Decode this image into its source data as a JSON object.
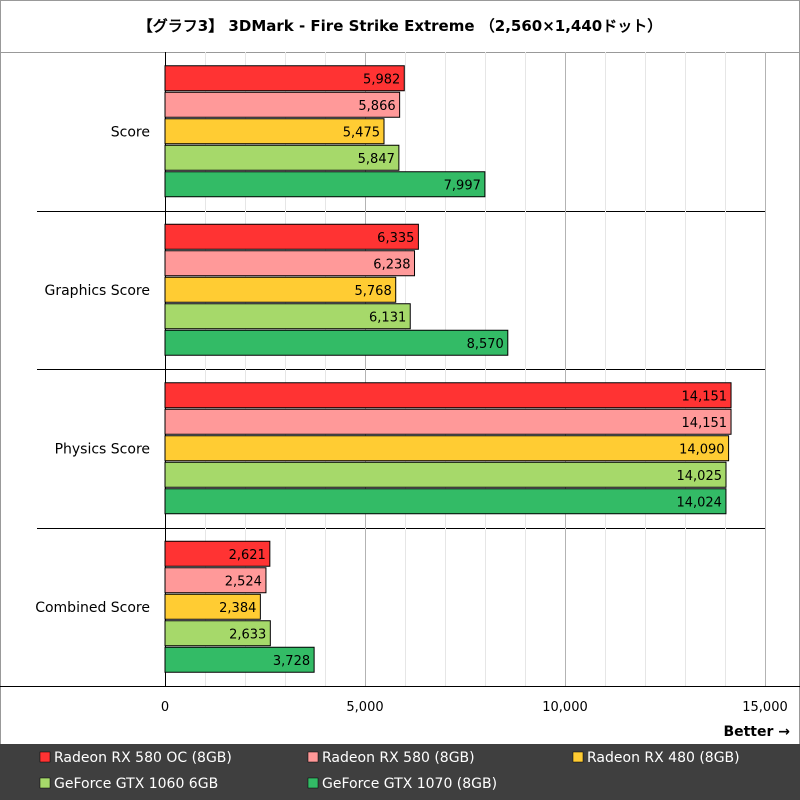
{
  "chart_data": {
    "type": "bar",
    "orientation": "horizontal",
    "title": "【グラフ3】 3DMark - Fire Strike Extreme （2,560×1,440ドット）",
    "categories": [
      "Score",
      "Graphics Score",
      "Physics Score",
      "Combined Score"
    ],
    "series": [
      {
        "name": "Radeon RX 580 OC (8GB)",
        "color": "#ff3333",
        "values": [
          5982,
          6335,
          14151,
          2621
        ]
      },
      {
        "name": "Radeon RX 580 (8GB)",
        "color": "#ff9999",
        "values": [
          5866,
          6238,
          14151,
          2524
        ]
      },
      {
        "name": "Radeon RX 480 (8GB)",
        "color": "#ffcc33",
        "values": [
          5475,
          5768,
          14090,
          2384
        ]
      },
      {
        "name": "GeForce GTX 1060 6GB",
        "color": "#a6d96a",
        "values": [
          5847,
          6131,
          14025,
          2633
        ]
      },
      {
        "name": "GeForce GTX 1070 (8GB)",
        "color": "#33bb66",
        "values": [
          7997,
          8570,
          14024,
          3728
        ]
      }
    ],
    "xlim": [
      0,
      15000
    ],
    "xticks": [
      0,
      5000,
      10000,
      15000
    ],
    "xtick_labels": [
      "0",
      "5,000",
      "10,000",
      "15,000"
    ],
    "xlabel": "Better →",
    "grid": true,
    "legend": "bottom"
  }
}
